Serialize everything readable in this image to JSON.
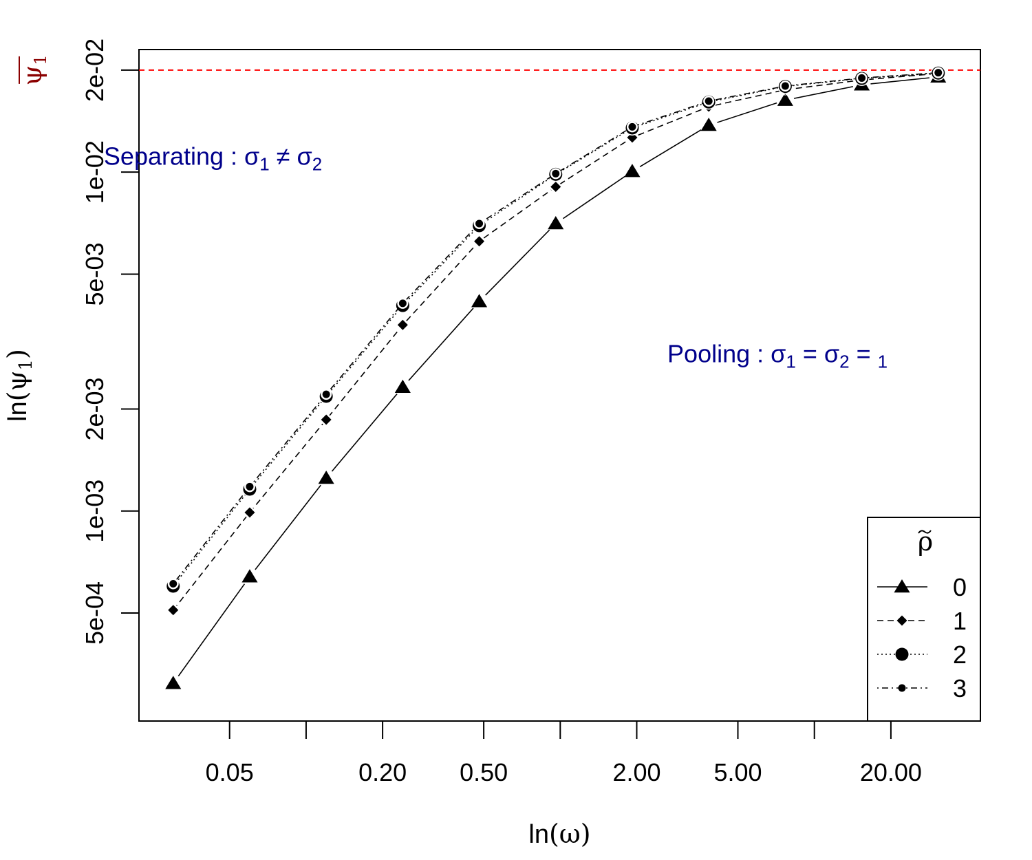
{
  "chart_data": {
    "type": "line",
    "xlabel": "ln(ω)",
    "ylabel": "ln(ψ1)",
    "x_scale": "log",
    "y_scale": "log",
    "xlim": [
      0.022,
      45
    ],
    "ylim": [
      0.00024,
      0.023
    ],
    "x_ticks": [
      0.05,
      0.2,
      0.5,
      2,
      5,
      20
    ],
    "x_tick_labels": [
      "0.05",
      "0.20",
      "0.50",
      "2.00",
      "5.00",
      "20.00"
    ],
    "x_minor_ticks": [
      0.1,
      1,
      10
    ],
    "y_ticks": [
      0.0005,
      0.001,
      0.002,
      0.005,
      0.01,
      0.02
    ],
    "y_tick_labels": [
      "5e-04",
      "1e-03",
      "2e-03",
      "5e-03",
      "1e-02",
      "2e-02"
    ],
    "x": [
      0.03,
      0.06,
      0.12,
      0.24,
      0.48,
      0.96,
      1.92,
      3.84,
      7.68,
      15.36,
      30.72
    ],
    "series": [
      {
        "name": "0",
        "line": "solid",
        "marker": "triangle",
        "values": [
          0.00031,
          0.00064,
          0.00125,
          0.00232,
          0.00415,
          0.00705,
          0.01005,
          0.01375,
          0.0163,
          0.0181,
          0.0191
        ]
      },
      {
        "name": "1",
        "line": "dashed",
        "marker": "diamond",
        "values": [
          0.00051,
          0.00099,
          0.00186,
          0.00354,
          0.00625,
          0.00905,
          0.01265,
          0.0156,
          0.0175,
          0.0187,
          0.01955
        ]
      },
      {
        "name": "2",
        "line": "dotted",
        "marker": "circle",
        "values": [
          0.0006,
          0.00116,
          0.00218,
          0.00404,
          0.00695,
          0.00985,
          0.0135,
          0.0161,
          0.0179,
          0.0189,
          0.0196
        ]
      },
      {
        "name": "3",
        "line": "dotdash",
        "marker": "small-circle",
        "values": [
          0.00061,
          0.00118,
          0.00221,
          0.0041,
          0.00705,
          0.0099,
          0.0136,
          0.0162,
          0.01795,
          0.01895,
          0.01965
        ]
      }
    ],
    "reference_line": {
      "label": "ψ1",
      "overline": true,
      "value": 0.02,
      "color": "#ff0000",
      "label_color": "#8b0000"
    },
    "legend": {
      "title": "ρ",
      "title_tilde": true,
      "placement": "bottom-right"
    },
    "annotations": [
      {
        "text": "Separating :",
        "math": "σ1 ≠ σ2",
        "x": 0.016,
        "y": 0.0105
      },
      {
        "text": "Pooling :",
        "math": "σ1 = σ2 = 1",
        "x": 2.64,
        "y": 0.00275
      }
    ],
    "grid": false
  }
}
